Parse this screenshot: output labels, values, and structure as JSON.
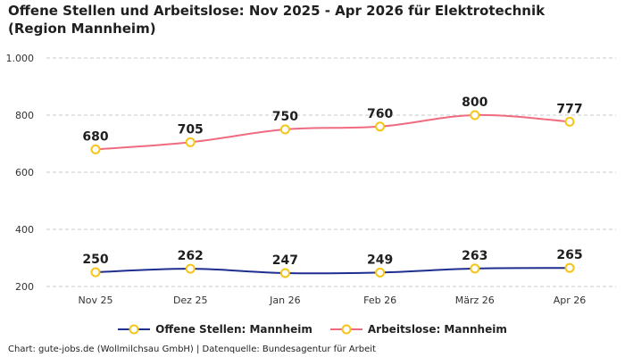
{
  "chart_data": {
    "type": "line",
    "title": "Offene Stellen und Arbeitslose: Nov 2025 - Apr 2026 für Elektrotechnik (Region Mannheim)",
    "categories": [
      "Nov 25",
      "Dez 25",
      "Jan 26",
      "Feb 26",
      "März 26",
      "Apr 26"
    ],
    "ylim": [
      200,
      1000
    ],
    "yticks": [
      "200",
      "400",
      "600",
      "800",
      "1.000"
    ],
    "ytick_values": [
      200,
      400,
      600,
      800,
      1000
    ],
    "grid": true,
    "legend_position": "bottom",
    "series": [
      {
        "name": "Offene Stellen: Mannheim",
        "color": "#1f2f8f",
        "values": [
          250,
          262,
          247,
          249,
          263,
          265
        ],
        "labels": [
          "250",
          "262",
          "247",
          "249",
          "263",
          "265"
        ]
      },
      {
        "name": "Arbeitslose: Mannheim",
        "color": "#f06b80",
        "values": [
          680,
          705,
          750,
          760,
          800,
          777
        ],
        "labels": [
          "680",
          "705",
          "750",
          "760",
          "800",
          "777"
        ]
      }
    ],
    "marker_color": "#f5c518"
  },
  "source": "Chart: gute-jobs.de (Wollmilchsau GmbH) | Datenquelle: Bundesagentur für Arbeit"
}
